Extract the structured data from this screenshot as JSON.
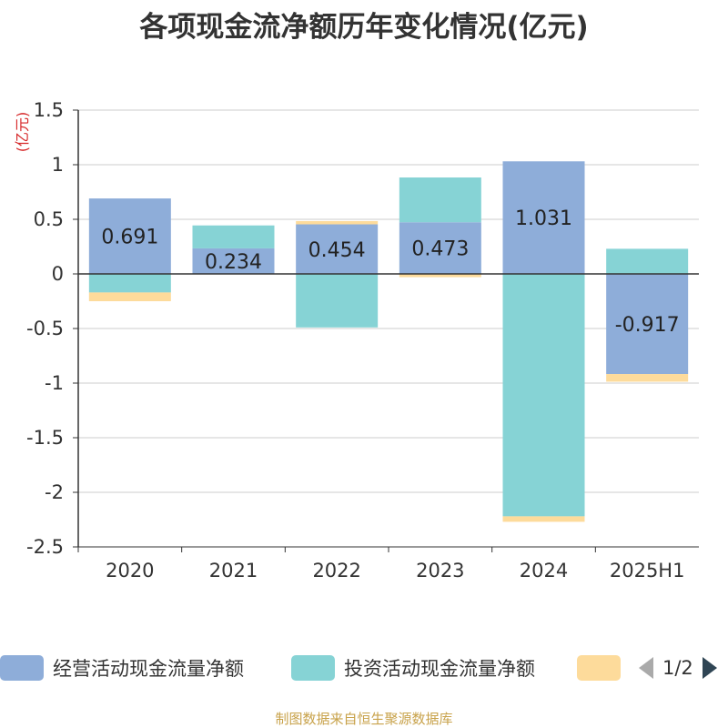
{
  "title": "各项现金流净额历年变化情况(亿元)",
  "source_note": "制图数据来自恒生聚源数据库",
  "legend": {
    "items": [
      {
        "label": "经营活动现金流量净额",
        "color": "#8eadd9"
      },
      {
        "label": "投资活动现金流量净额",
        "color": "#86d3d5"
      },
      {
        "label": "",
        "color": "#fddb9b"
      }
    ],
    "page": "1/2"
  },
  "chart_data": {
    "type": "bar",
    "stacked": true,
    "title": "各项现金流净额历年变化情况(亿元)",
    "ylabel": "(亿元)",
    "xlabel": "",
    "categories": [
      "2020",
      "2021",
      "2022",
      "2023",
      "2024",
      "2025H1"
    ],
    "ylim": [
      -2.5,
      1.5
    ],
    "yticks": [
      1.5,
      1,
      0.5,
      0,
      -0.5,
      -1,
      -1.5,
      -2,
      -2.5
    ],
    "grid": true,
    "legend_position": "bottom",
    "series": [
      {
        "name": "经营活动现金流量净额",
        "color": "#8eadd9",
        "values": [
          0.691,
          0.234,
          0.454,
          0.473,
          1.031,
          -0.917
        ],
        "labels": true
      },
      {
        "name": "投资活动现金流量净额",
        "color": "#86d3d5",
        "values": [
          -0.17,
          0.21,
          -0.49,
          0.41,
          -2.22,
          0.23
        ],
        "labels": false
      },
      {
        "color": "#fddb9b",
        "values": [
          -0.08,
          0.0,
          0.03,
          -0.03,
          -0.05,
          -0.07
        ],
        "labels": false
      }
    ]
  }
}
